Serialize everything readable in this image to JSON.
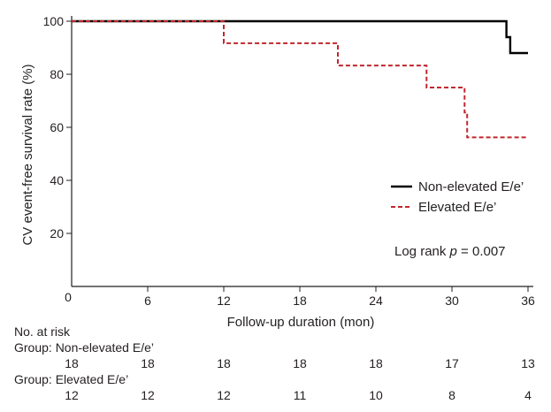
{
  "chart_data": {
    "type": "line",
    "title": "",
    "xlabel": "Follow-up duration (mon)",
    "ylabel": "CV event-free survival rate (%)",
    "xlim": [
      0,
      36
    ],
    "ylim": [
      0,
      100
    ],
    "xticks": [
      0,
      6,
      12,
      18,
      24,
      30,
      36
    ],
    "yticks": [
      0,
      20,
      40,
      60,
      80,
      100
    ],
    "x_tick_labels": [
      "0",
      "6",
      "12",
      "18",
      "24",
      "30",
      "36"
    ],
    "y_tick_labels": [
      "0",
      "20",
      "40",
      "60",
      "80",
      "100"
    ],
    "grid": false,
    "legend_position": "right",
    "series": [
      {
        "name": "Non-elevated E/e’",
        "style": "solid",
        "color": "#000000",
        "steps": [
          [
            0,
            100
          ],
          [
            34.3,
            100
          ],
          [
            34.3,
            94
          ],
          [
            34.6,
            94
          ],
          [
            34.6,
            88
          ],
          [
            36,
            88
          ]
        ]
      },
      {
        "name": "Elevated E/e’",
        "style": "dashed",
        "color": "#c1272d",
        "steps": [
          [
            0,
            100
          ],
          [
            12,
            100
          ],
          [
            12,
            91.7
          ],
          [
            21,
            91.7
          ],
          [
            21,
            83.3
          ],
          [
            28,
            83.3
          ],
          [
            28,
            75
          ],
          [
            31,
            75
          ],
          [
            31,
            65.6
          ],
          [
            31.2,
            65.6
          ],
          [
            31.2,
            56.2
          ],
          [
            36,
            56.2
          ]
        ]
      }
    ],
    "annotations": [
      {
        "text_prefix": "Log rank ",
        "text_italic": "p",
        "text_suffix": " = 0.007"
      }
    ]
  },
  "risk_table": {
    "title": "No. at risk",
    "time_points": [
      0,
      6,
      12,
      18,
      24,
      30,
      36
    ],
    "groups": [
      {
        "label": "Group: Non-elevated E/e’",
        "counts": [
          "18",
          "18",
          "18",
          "18",
          "18",
          "17",
          "13"
        ]
      },
      {
        "label": "Group: Elevated E/e’",
        "counts": [
          "12",
          "12",
          "12",
          "11",
          "10",
          "8",
          "4"
        ]
      }
    ]
  }
}
